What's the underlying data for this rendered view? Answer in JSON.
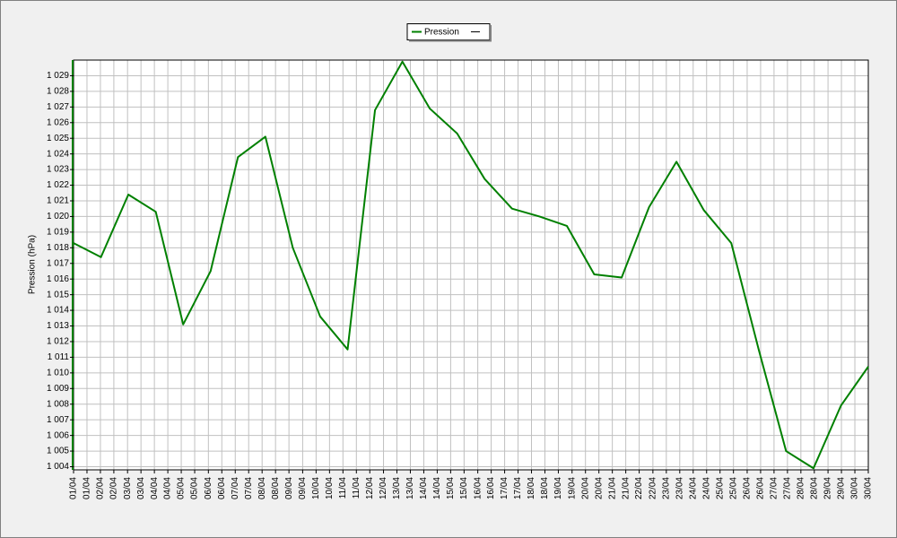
{
  "chart_data": {
    "type": "line",
    "y_label": "Pression (hPa)",
    "x": [
      "01/04",
      "02/04",
      "03/04",
      "04/04",
      "05/04",
      "06/04",
      "07/04",
      "08/04",
      "09/04",
      "10/04",
      "11/04",
      "12/04",
      "13/04",
      "14/04",
      "15/04",
      "16/04",
      "17/04",
      "18/04",
      "19/04",
      "20/04",
      "21/04",
      "22/04",
      "23/04",
      "24/04",
      "25/04",
      "26/04",
      "27/04",
      "28/04",
      "29/04",
      "30/04"
    ],
    "series": [
      {
        "name": "Pression",
        "color": "#008000",
        "values": [
          1018.3,
          1017.4,
          1021.4,
          1020.3,
          1013.1,
          1016.5,
          1023.8,
          1025.1,
          1018.0,
          1013.6,
          1011.5,
          1026.8,
          1029.9,
          1026.9,
          1025.3,
          1022.4,
          1020.5,
          1020.0,
          1019.4,
          1016.3,
          1016.1,
          1020.6,
          1023.5,
          1020.4,
          1018.3,
          1011.5,
          1005.0,
          1003.9,
          1007.9,
          1010.4
        ]
      }
    ],
    "xlim": [
      0,
      29
    ],
    "xticks": [
      {
        "value": 0,
        "label": "01/04"
      },
      {
        "value": 0.49,
        "label": "01/04"
      },
      {
        "value": 0.98,
        "label": "02/04"
      },
      {
        "value": 1.47,
        "label": "02/04"
      },
      {
        "value": 1.97,
        "label": "03/04"
      },
      {
        "value": 2.46,
        "label": "03/04"
      },
      {
        "value": 2.95,
        "label": "04/04"
      },
      {
        "value": 3.44,
        "label": "04/04"
      },
      {
        "value": 3.93,
        "label": "05/04"
      },
      {
        "value": 4.42,
        "label": "05/04"
      },
      {
        "value": 4.92,
        "label": "06/04"
      },
      {
        "value": 5.41,
        "label": "06/04"
      },
      {
        "value": 5.9,
        "label": "07/04"
      },
      {
        "value": 6.39,
        "label": "07/04"
      },
      {
        "value": 6.88,
        "label": "08/04"
      },
      {
        "value": 7.37,
        "label": "08/04"
      },
      {
        "value": 7.86,
        "label": "09/04"
      },
      {
        "value": 8.36,
        "label": "09/04"
      },
      {
        "value": 8.85,
        "label": "10/04"
      },
      {
        "value": 9.34,
        "label": "10/04"
      },
      {
        "value": 9.83,
        "label": "11/04"
      },
      {
        "value": 10.32,
        "label": "11/04"
      },
      {
        "value": 10.81,
        "label": "12/04"
      },
      {
        "value": 11.31,
        "label": "12/04"
      },
      {
        "value": 11.8,
        "label": "13/04"
      },
      {
        "value": 12.29,
        "label": "13/04"
      },
      {
        "value": 12.78,
        "label": "14/04"
      },
      {
        "value": 13.27,
        "label": "14/04"
      },
      {
        "value": 13.76,
        "label": "15/04"
      },
      {
        "value": 14.25,
        "label": "15/04"
      },
      {
        "value": 14.75,
        "label": "16/04"
      },
      {
        "value": 15.24,
        "label": "16/04"
      },
      {
        "value": 15.73,
        "label": "17/04"
      },
      {
        "value": 16.22,
        "label": "17/04"
      },
      {
        "value": 16.71,
        "label": "18/04"
      },
      {
        "value": 17.2,
        "label": "18/04"
      },
      {
        "value": 17.69,
        "label": "19/04"
      },
      {
        "value": 18.19,
        "label": "19/04"
      },
      {
        "value": 18.68,
        "label": "20/04"
      },
      {
        "value": 19.17,
        "label": "20/04"
      },
      {
        "value": 19.66,
        "label": "21/04"
      },
      {
        "value": 20.15,
        "label": "21/04"
      },
      {
        "value": 20.64,
        "label": "22/04"
      },
      {
        "value": 21.14,
        "label": "22/04"
      },
      {
        "value": 21.63,
        "label": "23/04"
      },
      {
        "value": 22.12,
        "label": "23/04"
      },
      {
        "value": 22.61,
        "label": "24/04"
      },
      {
        "value": 23.1,
        "label": "24/04"
      },
      {
        "value": 23.59,
        "label": "25/04"
      },
      {
        "value": 24.08,
        "label": "25/04"
      },
      {
        "value": 24.58,
        "label": "26/04"
      },
      {
        "value": 25.07,
        "label": "26/04"
      },
      {
        "value": 25.56,
        "label": "27/04"
      },
      {
        "value": 26.05,
        "label": "27/04"
      },
      {
        "value": 26.54,
        "label": "28/04"
      },
      {
        "value": 27.03,
        "label": "28/04"
      },
      {
        "value": 27.53,
        "label": "29/04"
      },
      {
        "value": 28.02,
        "label": "29/04"
      },
      {
        "value": 28.51,
        "label": "30/04"
      },
      {
        "value": 29,
        "label": "30/04"
      }
    ],
    "ylim": [
      1003.8,
      1030
    ],
    "yticks": [
      {
        "value": 1004,
        "label": "1 004"
      },
      {
        "value": 1005,
        "label": "1 005"
      },
      {
        "value": 1006,
        "label": "1 006"
      },
      {
        "value": 1007,
        "label": "1 007"
      },
      {
        "value": 1008,
        "label": "1 008"
      },
      {
        "value": 1009,
        "label": "1 009"
      },
      {
        "value": 1010,
        "label": "1 010"
      },
      {
        "value": 1011,
        "label": "1 011"
      },
      {
        "value": 1012,
        "label": "1 012"
      },
      {
        "value": 1013,
        "label": "1 013"
      },
      {
        "value": 1014,
        "label": "1 014"
      },
      {
        "value": 1015,
        "label": "1 015"
      },
      {
        "value": 1016,
        "label": "1 016"
      },
      {
        "value": 1017,
        "label": "1 017"
      },
      {
        "value": 1018,
        "label": "1 018"
      },
      {
        "value": 1019,
        "label": "1 019"
      },
      {
        "value": 1020,
        "label": "1 020"
      },
      {
        "value": 1021,
        "label": "1 021"
      },
      {
        "value": 1022,
        "label": "1 022"
      },
      {
        "value": 1023,
        "label": "1 023"
      },
      {
        "value": 1024,
        "label": "1 024"
      },
      {
        "value": 1025,
        "label": "1 025"
      },
      {
        "value": 1026,
        "label": "1 026"
      },
      {
        "value": 1027,
        "label": "1 027"
      },
      {
        "value": 1028,
        "label": "1 028"
      },
      {
        "value": 1029,
        "label": "1 029"
      }
    ],
    "grid": true,
    "legend": "top"
  }
}
